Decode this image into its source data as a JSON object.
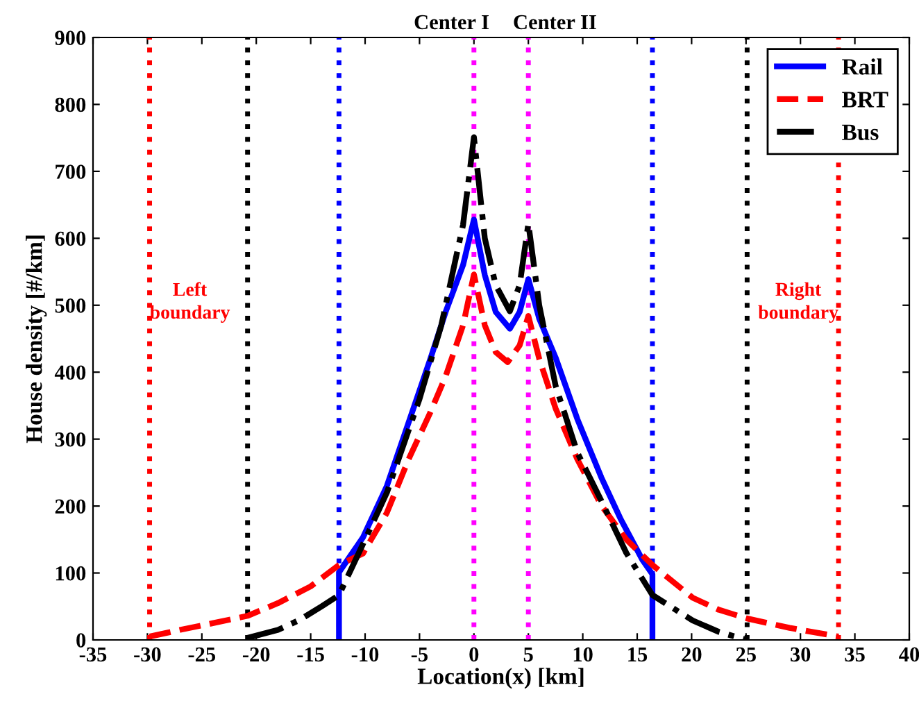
{
  "chart_data": {
    "type": "line",
    "xlabel": "Location(x) [km]",
    "ylabel": "House density [#/km]",
    "xlim": [
      -35,
      40
    ],
    "xticks": [
      -35,
      -30,
      -25,
      -20,
      -15,
      -10,
      -5,
      0,
      5,
      10,
      15,
      20,
      25,
      30,
      35,
      40
    ],
    "ylim": [
      0,
      900
    ],
    "yticks": [
      0,
      100,
      200,
      300,
      400,
      500,
      600,
      700,
      800,
      900
    ],
    "grid": false,
    "legend": "top right",
    "series": [
      {
        "name": "Rail",
        "color": "#0000ff",
        "line_style": "solid",
        "x": [
          -12.4,
          -12.4,
          -10.2,
          -8,
          -6,
          -4,
          -2.6,
          -1,
          0,
          1,
          2,
          3.3,
          4.2,
          5,
          6,
          7.5,
          9.5,
          11.7,
          13.5,
          15.5,
          16.4,
          16.4
        ],
        "values": [
          0,
          101,
          153,
          230,
          325,
          420,
          490,
          560,
          628,
          545,
          490,
          465,
          490,
          539,
          480,
          422,
          330,
          243,
          180,
          119,
          98,
          0
        ]
      },
      {
        "name": "BRT",
        "color": "#ff0000",
        "line_style": "dashed",
        "x": [
          -29.8,
          -27,
          -24,
          -20.8,
          -18,
          -15,
          -12.4,
          -10.2,
          -8,
          -6,
          -4,
          -2.6,
          -1,
          0,
          1,
          2,
          3.1,
          4.2,
          5,
          6,
          7.5,
          9.5,
          11.7,
          14,
          16.4,
          20.1,
          22.5,
          25.1,
          29,
          33.5
        ],
        "values": [
          5,
          15,
          25,
          36,
          55,
          80,
          112,
          129,
          190,
          270,
          340,
          394,
          470,
          546,
          470,
          430,
          415,
          440,
          484,
          420,
          346,
          270,
          201,
          150,
          112,
          63,
          45,
          32,
          18,
          5
        ]
      },
      {
        "name": "Bus",
        "color": "#000000",
        "line_style": "dashdot",
        "x": [
          -20.8,
          -18,
          -16,
          -14,
          -12.4,
          -10,
          -8,
          -5,
          -3,
          -1,
          0,
          1,
          2,
          3.3,
          4.2,
          5,
          6,
          7.5,
          9.5,
          11.7,
          14,
          16.4,
          20.1,
          22.5,
          25.1
        ],
        "values": [
          3,
          15,
          30,
          50,
          67,
          150,
          220,
          360,
          470,
          620,
          751,
          600,
          530,
          491,
          530,
          622,
          500,
          380,
          280,
          208,
          130,
          67,
          29,
          12,
          0
        ]
      }
    ],
    "ref_lines": [
      {
        "axis": "x",
        "value": -29.8,
        "label": "Left boundary",
        "color": "#ff0000",
        "line_style": "dotted"
      },
      {
        "axis": "x",
        "value": -20.8,
        "color": "#000000",
        "line_style": "dotted"
      },
      {
        "axis": "x",
        "value": -12.4,
        "color": "#0000ff",
        "line_style": "dotted"
      },
      {
        "axis": "x",
        "value": 0,
        "label": "Center I",
        "color": "#ff00ff",
        "line_style": "dotted"
      },
      {
        "axis": "x",
        "value": 5,
        "label": "Center II",
        "color": "#ff00ff",
        "line_style": "dotted"
      },
      {
        "axis": "x",
        "value": 16.4,
        "color": "#0000ff",
        "line_style": "dotted"
      },
      {
        "axis": "x",
        "value": 25.1,
        "color": "#000000",
        "line_style": "dotted"
      },
      {
        "axis": "x",
        "value": 33.5,
        "label": "Right boundary",
        "color": "#ff0000",
        "line_style": "dotted"
      }
    ]
  }
}
